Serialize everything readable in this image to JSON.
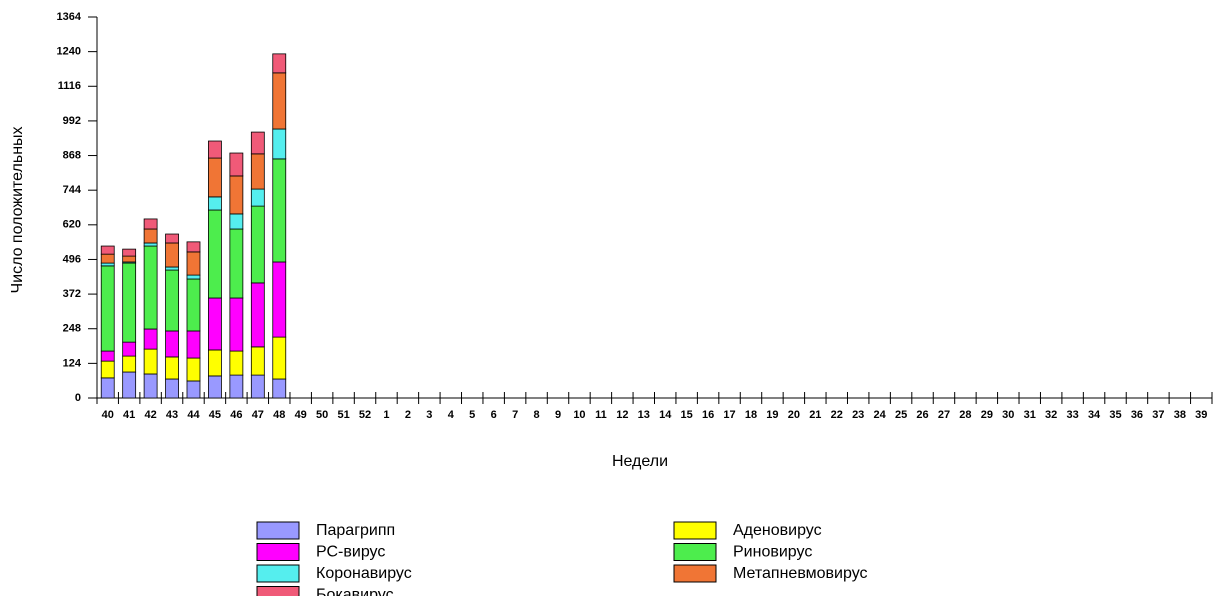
{
  "chart_data": {
    "type": "bar",
    "stacked": true,
    "y_label": "Число положительных",
    "x_label": "Недели",
    "categories": [
      "40",
      "41",
      "42",
      "43",
      "44",
      "45",
      "46",
      "47",
      "48",
      "49",
      "50",
      "51",
      "52",
      "1",
      "2",
      "3",
      "4",
      "5",
      "6",
      "7",
      "8",
      "9",
      "10",
      "11",
      "12",
      "13",
      "14",
      "15",
      "16",
      "17",
      "18",
      "19",
      "20",
      "21",
      "22",
      "23",
      "24",
      "25",
      "26",
      "27",
      "28",
      "29",
      "30",
      "31",
      "32",
      "33",
      "34",
      "35",
      "36",
      "37",
      "38",
      "39"
    ],
    "series": [
      {
        "name": "Парагрипп",
        "color": "#9999ff",
        "values": [
          72,
          93,
          86,
          68,
          61,
          79,
          82,
          82,
          68,
          null,
          null,
          null,
          null,
          null,
          null,
          null,
          null,
          null,
          null,
          null,
          null,
          null,
          null,
          null,
          null,
          null,
          null,
          null,
          null,
          null,
          null,
          null,
          null,
          null,
          null,
          null,
          null,
          null,
          null,
          null,
          null,
          null,
          null,
          null,
          null,
          null,
          null,
          null,
          null,
          null,
          null,
          null
        ]
      },
      {
        "name": "Аденовирус",
        "color": "#ffff00",
        "values": [
          60,
          57,
          89,
          79,
          82,
          93,
          86,
          101,
          150,
          null,
          null,
          null,
          null,
          null,
          null,
          null,
          null,
          null,
          null,
          null,
          null,
          null,
          null,
          null,
          null,
          null,
          null,
          null,
          null,
          null,
          null,
          null,
          null,
          null,
          null,
          null,
          null,
          null,
          null,
          null,
          null,
          null,
          null,
          null,
          null,
          null,
          null,
          null,
          null,
          null,
          null,
          null
        ]
      },
      {
        "name": "РС-вирус",
        "color": "#ff00ff",
        "values": [
          36,
          50,
          72,
          93,
          97,
          186,
          190,
          229,
          269,
          null,
          null,
          null,
          null,
          null,
          null,
          null,
          null,
          null,
          null,
          null,
          null,
          null,
          null,
          null,
          null,
          null,
          null,
          null,
          null,
          null,
          null,
          null,
          null,
          null,
          null,
          null,
          null,
          null,
          null,
          null,
          null,
          null,
          null,
          null,
          null,
          null,
          null,
          null,
          null,
          null,
          null,
          null
        ]
      },
      {
        "name": "Риновирус",
        "color": "#4ded4d",
        "values": [
          305,
          283,
          297,
          218,
          186,
          315,
          247,
          275,
          369,
          null,
          null,
          null,
          null,
          null,
          null,
          null,
          null,
          null,
          null,
          null,
          null,
          null,
          null,
          null,
          null,
          null,
          null,
          null,
          null,
          null,
          null,
          null,
          null,
          null,
          null,
          null,
          null,
          null,
          null,
          null,
          null,
          null,
          null,
          null,
          null,
          null,
          null,
          null,
          null,
          null,
          null,
          null
        ]
      },
      {
        "name": "Коронавирус",
        "color": "#55eeee",
        "values": [
          10,
          4,
          11,
          11,
          14,
          47,
          54,
          61,
          107,
          null,
          null,
          null,
          null,
          null,
          null,
          null,
          null,
          null,
          null,
          null,
          null,
          null,
          null,
          null,
          null,
          null,
          null,
          null,
          null,
          null,
          null,
          null,
          null,
          null,
          null,
          null,
          null,
          null,
          null,
          null,
          null,
          null,
          null,
          null,
          null,
          null,
          null,
          null,
          null,
          null,
          null,
          null
        ]
      },
      {
        "name": "Метапневмовирус",
        "color": "#f07535",
        "values": [
          32,
          21,
          50,
          86,
          83,
          139,
          136,
          126,
          201,
          null,
          null,
          null,
          null,
          null,
          null,
          null,
          null,
          null,
          null,
          null,
          null,
          null,
          null,
          null,
          null,
          null,
          null,
          null,
          null,
          null,
          null,
          null,
          null,
          null,
          null,
          null,
          null,
          null,
          null,
          null,
          null,
          null,
          null,
          null,
          null,
          null,
          null,
          null,
          null,
          null,
          null,
          null
        ]
      },
      {
        "name": "Бокавирус",
        "color": "#f05a78",
        "values": [
          29,
          25,
          36,
          32,
          36,
          61,
          82,
          78,
          68,
          null,
          null,
          null,
          null,
          null,
          null,
          null,
          null,
          null,
          null,
          null,
          null,
          null,
          null,
          null,
          null,
          null,
          null,
          null,
          null,
          null,
          null,
          null,
          null,
          null,
          null,
          null,
          null,
          null,
          null,
          null,
          null,
          null,
          null,
          null,
          null,
          null,
          null,
          null,
          null,
          null,
          null,
          null
        ]
      }
    ],
    "ylim": [
      0,
      1364
    ],
    "yticks": [
      0,
      124,
      248,
      372,
      496,
      620,
      744,
      868,
      992,
      1116,
      1240,
      1364
    ]
  }
}
